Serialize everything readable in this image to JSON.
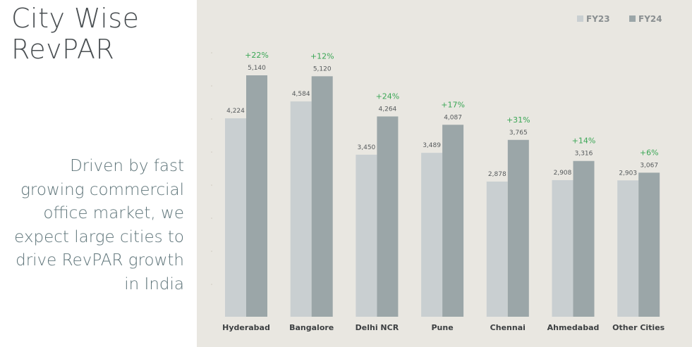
{
  "slide": {
    "title_lines": [
      "City Wise",
      "RevPAR"
    ],
    "subtitle": "Driven by fast growing commercial office market, we expect large cities to drive RevPAR growth in India"
  },
  "chart_data": {
    "type": "bar",
    "categories": [
      "Hyderabad",
      "Bangalore",
      "Delhi NCR",
      "Pune",
      "Chennai",
      "Ahmedabad",
      "Other Cities"
    ],
    "series": [
      {
        "name": "FY23",
        "color": "#c9cfd1",
        "values": [
          4224,
          4584,
          3450,
          3489,
          2878,
          2908,
          2903
        ],
        "labels": [
          "4,224",
          "4,584",
          "3,450",
          "3,489",
          "2,878",
          "2,908",
          "2,903"
        ]
      },
      {
        "name": "FY24",
        "color": "#9ba6a8",
        "values": [
          5140,
          5120,
          4264,
          4087,
          3765,
          3316,
          3067
        ],
        "labels": [
          "5,140",
          "5,120",
          "4,264",
          "4,087",
          "3,765",
          "3,316",
          "3,067"
        ]
      }
    ],
    "growth_labels": [
      "+22%",
      "+12%",
      "+24%",
      "+17%",
      "+31%",
      "+14%",
      "+6%"
    ],
    "growth_color": "#3aa655",
    "ylim": [
      0,
      5140
    ],
    "legend": "top-right",
    "grid": false
  }
}
